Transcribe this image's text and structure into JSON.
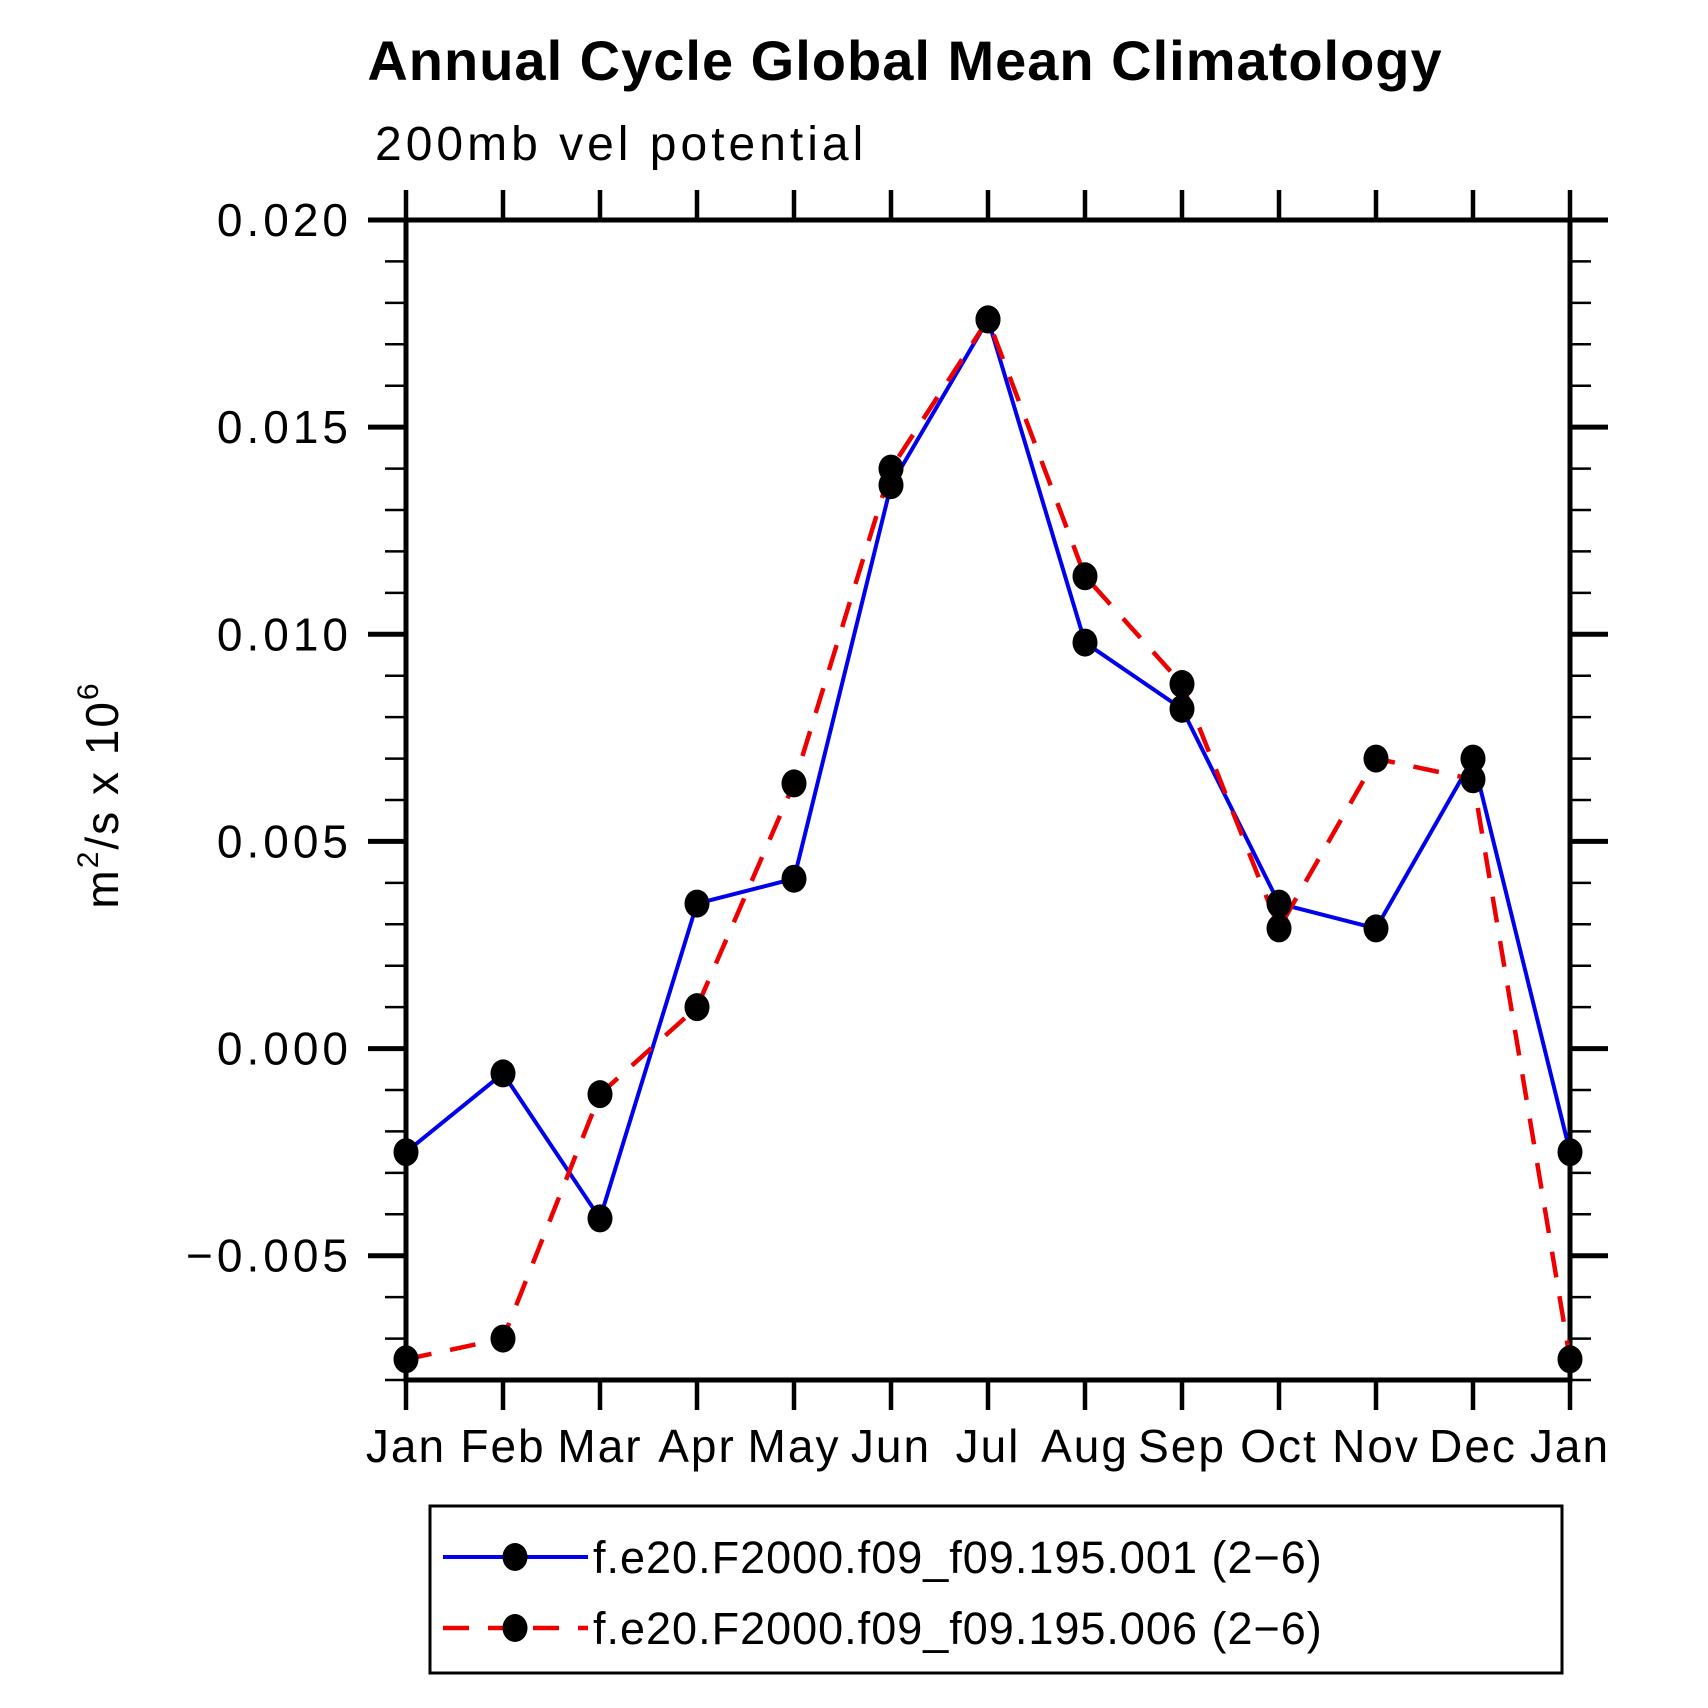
{
  "title": "Annual Cycle Global Mean Climatology",
  "subtitle": "200mb vel potential",
  "chart_data": {
    "type": "line",
    "categories": [
      "Jan",
      "Feb",
      "Mar",
      "Apr",
      "May",
      "Jun",
      "Jul",
      "Aug",
      "Sep",
      "Oct",
      "Nov",
      "Dec",
      "Jan"
    ],
    "series": [
      {
        "name": "f.e20.F2000.f09_f09.195.001 (2−6)",
        "color": "#0000ee",
        "line_style": "solid",
        "marker": "filled-black-circle",
        "values": [
          -0.0025,
          -0.0006,
          -0.0041,
          0.0035,
          0.0041,
          0.0136,
          0.0176,
          0.0098,
          0.0082,
          0.0035,
          0.0029,
          0.007,
          -0.0025
        ]
      },
      {
        "name": "f.e20.F2000.f09_f09.195.006 (2−6)",
        "color": "#ee0000",
        "line_style": "dashed",
        "marker": "filled-black-circle",
        "values": [
          -0.0075,
          -0.007,
          -0.0011,
          0.001,
          0.0064,
          0.014,
          0.0176,
          0.0114,
          0.0088,
          0.0029,
          0.007,
          0.0065,
          -0.0075
        ]
      }
    ],
    "xlabel": "",
    "ylabel": "m²/s x 10⁶",
    "ylabel_parts": [
      {
        "t": "m"
      },
      {
        "t": "2",
        "sup": true
      },
      {
        "t": "/s x 10"
      },
      {
        "t": "6",
        "sup": true
      }
    ],
    "ylim": [
      -0.008,
      0.02
    ],
    "y_major_ticks": [
      0.02,
      0.015,
      0.01,
      0.005,
      0.0,
      -0.005
    ],
    "y_tick_labels": [
      "0.020",
      "0.015",
      "0.010",
      "0.005",
      "0.000",
      "−0.005"
    ],
    "y_minor_interval": 0.001,
    "grid": "off",
    "legend_position": "bottom",
    "axis_color": "#000000",
    "marker_color": "#000000"
  }
}
